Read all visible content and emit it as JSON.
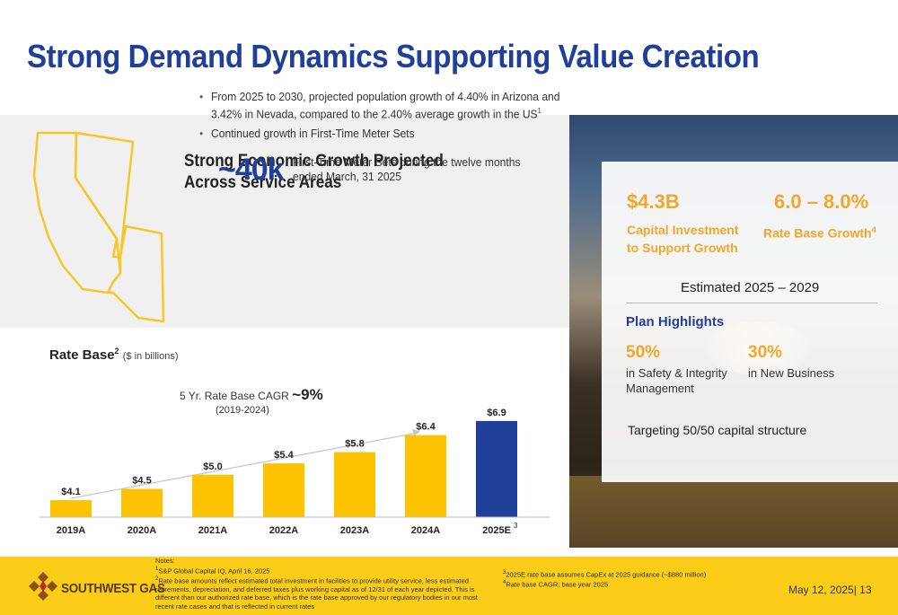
{
  "title": "Strong Demand Dynamics Supporting Value Creation",
  "growth": {
    "heading_line1": "Strong Economic Growth Projected",
    "heading_line2": "Across Service Areas",
    "bullet1": "From 2025 to 2030, projected population growth of 4.40% in Arizona and 3.42% in Nevada, compared to the 2.40% average growth in the US",
    "bullet1_ref": "1",
    "bullet2": "Continued growth in First-Time Meter Sets",
    "stat_value": "~40k",
    "stat_desc": "First-Time Meter Sets during the twelve months ended March, 31 2025"
  },
  "rate_base": {
    "title": "Rate Base",
    "title_ref": "2",
    "units": "($ in billions)",
    "cagr_prefix": "5 Yr. Rate Base CAGR",
    "cagr_value": "~9%",
    "cagr_period": "(2019-2024)"
  },
  "chart_data": {
    "type": "bar",
    "categories": [
      "2019A",
      "2020A",
      "2021A",
      "2022A",
      "2023A",
      "2024A",
      "2025E"
    ],
    "values": [
      4.1,
      4.5,
      5.0,
      5.4,
      5.8,
      6.4,
      6.9
    ],
    "value_labels": [
      "$4.1",
      "$4.5",
      "$5.0",
      "$5.4",
      "$5.8",
      "$6.4",
      "$6.9"
    ],
    "category_refs": [
      "",
      "",
      "",
      "",
      "",
      "",
      "3"
    ],
    "colors": [
      "#fdc300",
      "#fdc300",
      "#fdc300",
      "#fdc300",
      "#fdc300",
      "#fdc300",
      "#1f3f99"
    ],
    "title": "Rate Base",
    "ylabel": "",
    "ylim": [
      3.5,
      7.5
    ]
  },
  "highlights": {
    "capex_value": "$4.3B",
    "capex_label_line1": "Capital Investment",
    "capex_label_line2": "to Support Growth",
    "growth_value": "6.0 – 8.0%",
    "growth_label": "Rate Base Growth",
    "growth_ref": "4",
    "estimated": "Estimated 2025 – 2029",
    "plan_heading": "Plan Highlights",
    "pct1": "50%",
    "pct1_desc_line1": "in Safety & Integrity",
    "pct1_desc_line2": "Management",
    "pct2": "30%",
    "pct2_desc": "in New Business",
    "target": "Targeting 50/50 capital structure"
  },
  "footer": {
    "logo_text": "SOUTHWEST GAS",
    "notes_label": "Notes:",
    "note1": "S&P Global Capital IQ, April 16, 2025",
    "note2": "Rate base amounts reflect estimated total investment in facilities to provide utility service, less estimated retirements, depreciation, and deferred taxes plus working capital as of 12/31 of each year depicted. This is different than our authorized rate base, which is the rate base approved by our regulatory bodies in our most recent rate cases and that is reflected in current rates",
    "note3": "2025E rate base assumes CapEx at 2025 guidance (~$880 million)",
    "note4": "Rate base CAGR: base year 2025",
    "date": "May 12, 2025",
    "page": "| 13"
  },
  "colors": {
    "title_blue": "#1f3f99",
    "accent_orange": "#f2a62a",
    "bar_yellow": "#fdc300",
    "footer_yellow": "#fbcd18"
  }
}
